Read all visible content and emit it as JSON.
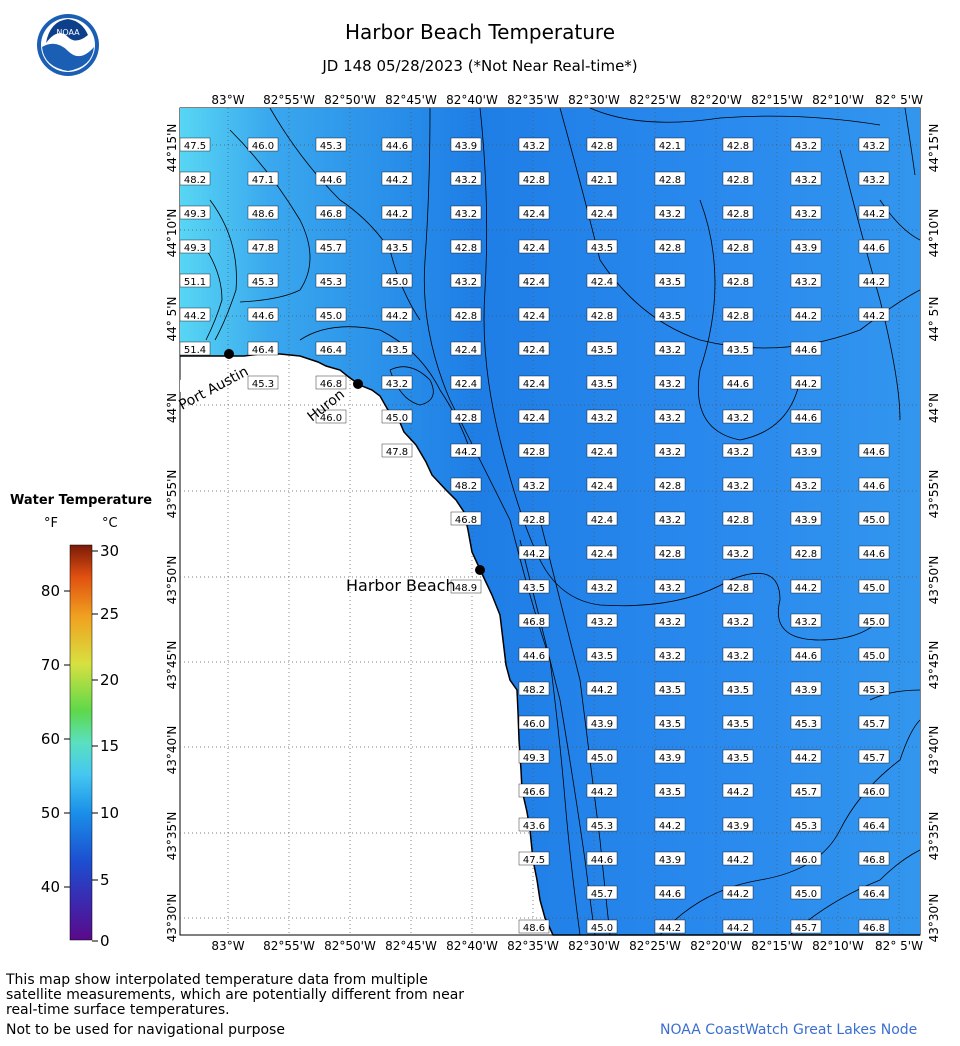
{
  "header": {
    "title": "Harbor Beach Temperature",
    "subtitle": "JD 148 05/28/2023 (*Not Near Real-time*)",
    "logo_text": "NOAA"
  },
  "axes": {
    "top_lon_labels": [
      "83°W",
      "82°55'W",
      "82°50'W",
      "82°45'W",
      "82°40'W",
      "82°35'W",
      "82°30'W",
      "82°25'W",
      "82°20'W",
      "82°15'W",
      "82°10'W",
      "82° 5'W"
    ],
    "bottom_lon_labels": [
      "83°W",
      "82°55'W",
      "82°50'W",
      "82°45'W",
      "82°40'W",
      "82°35'W",
      "82°30'W",
      "82°25'W",
      "82°20'W",
      "82°15'W",
      "82°10'W",
      "82° 5'W"
    ],
    "lat_labels": [
      "44°15'N",
      "44°10'N",
      "44° 5'N",
      "44°N",
      "43°55'N",
      "43°50'N",
      "43°45'N",
      "43°40'N",
      "43°35'N",
      "43°30'N"
    ]
  },
  "places": [
    {
      "name": "Port Austin"
    },
    {
      "name": "Huron"
    },
    {
      "name": "Harbor Beach"
    }
  ],
  "legend": {
    "title": "Water Temperature",
    "unit_f": "°F",
    "unit_c": "°C",
    "f_ticks": [
      "80",
      "70",
      "60",
      "50",
      "40"
    ],
    "c_ticks": [
      "30",
      "25",
      "20",
      "15",
      "10",
      "5",
      "0"
    ],
    "colors": [
      "#5a0a8a",
      "#2d2fbf",
      "#1a7ee8",
      "#45c8f0",
      "#62e0b0",
      "#6ad23a",
      "#d8e040",
      "#f0a020",
      "#e05010",
      "#7a1a08"
    ]
  },
  "temps": [
    [
      47.5,
      46.0,
      45.3,
      44.6,
      43.9,
      43.2,
      42.8,
      42.1,
      42.8,
      43.2,
      43.2
    ],
    [
      48.2,
      47.1,
      44.6,
      44.2,
      43.2,
      42.8,
      42.1,
      42.8,
      42.8,
      43.2,
      43.2
    ],
    [
      49.3,
      48.6,
      46.8,
      44.2,
      43.2,
      42.4,
      42.4,
      43.2,
      42.8,
      43.2,
      44.2
    ],
    [
      49.3,
      47.8,
      45.7,
      43.5,
      42.8,
      42.4,
      43.5,
      42.8,
      42.8,
      43.9,
      44.6
    ],
    [
      51.1,
      45.3,
      45.3,
      45.0,
      43.2,
      42.4,
      42.4,
      43.5,
      42.8,
      43.2,
      44.2
    ],
    [
      44.2,
      44.6,
      45.0,
      44.2,
      42.8,
      42.4,
      42.8,
      43.5,
      42.8,
      44.2,
      44.2
    ],
    [
      51.4,
      46.4,
      46.4,
      43.5,
      42.4,
      42.4,
      43.5,
      43.2,
      43.5,
      44.6
    ],
    [
      45.3,
      46.8,
      43.2,
      42.4,
      42.4,
      43.5,
      43.2,
      44.6,
      44.2
    ],
    [
      46.0,
      45.0,
      42.8,
      42.4,
      43.2,
      43.2,
      43.2,
      44.6
    ],
    [
      47.8,
      44.2,
      42.8,
      42.4,
      43.2,
      43.2,
      43.9,
      44.6
    ],
    [
      48.2,
      43.2,
      42.4,
      42.8,
      43.2,
      43.2,
      44.6
    ],
    [
      46.8,
      42.8,
      42.4,
      43.2,
      42.8,
      43.9,
      45.0
    ],
    [
      44.2,
      42.4,
      42.8,
      43.2,
      42.8,
      44.6
    ],
    [
      48.9,
      43.5,
      43.2,
      43.2,
      42.8,
      44.2,
      45.0
    ],
    [
      46.8,
      43.2,
      43.2,
      43.2,
      43.2,
      45.0
    ],
    [
      44.6,
      43.5,
      43.2,
      43.2,
      44.6,
      45.0
    ],
    [
      48.2,
      44.2,
      43.5,
      43.5,
      43.9,
      45.3
    ],
    [
      46.0,
      43.9,
      43.5,
      43.5,
      45.3,
      45.7
    ],
    [
      49.3,
      45.0,
      43.9,
      43.5,
      44.2,
      45.7
    ],
    [
      46.6,
      44.2,
      43.5,
      44.2,
      45.7,
      46.0
    ],
    [
      43.6,
      45.3,
      44.2,
      43.9,
      45.3,
      46.4
    ],
    [
      47.5,
      44.6,
      43.9,
      44.2,
      46.0,
      46.8
    ],
    [
      45.7,
      44.6,
      44.2,
      45.0,
      46.4
    ],
    [
      48.6,
      45.0,
      44.2,
      44.2,
      45.7,
      46.8
    ]
  ],
  "footer": {
    "note": "This map show interpolated temperature data from multiple satellite measurements, which are potentially different from near real-time surface temperatures.",
    "note2": "Not to be used for navigational purpose",
    "credit": "NOAA CoastWatch Great Lakes Node"
  }
}
